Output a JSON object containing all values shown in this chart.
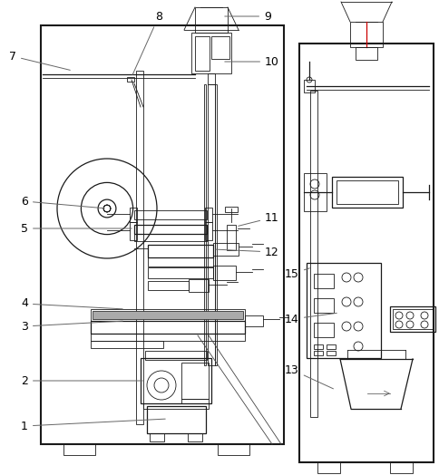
{
  "bg_color": "#ffffff",
  "lc": "#1a1a1a",
  "gc": "#666666",
  "rc": "#cc0000",
  "lw_main": 1.5,
  "lw_med": 0.9,
  "lw_thin": 0.6,
  "label_fs": 9
}
